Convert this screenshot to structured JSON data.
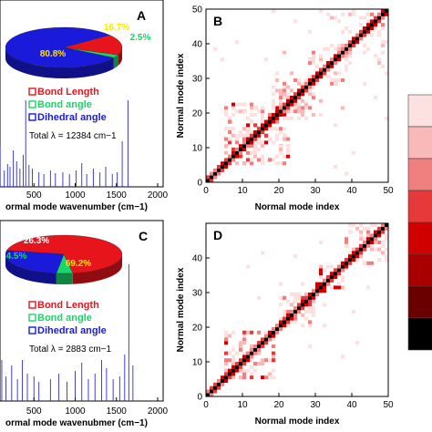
{
  "panels": {
    "A": {
      "letter": "A",
      "xlabel": "ormal mode wavenumber (cm−1)",
      "total_label": "Total λ = 12384 cm−1",
      "pie": {
        "slices": [
          {
            "name": "Bond Length",
            "percent": 16.7,
            "label": "16.7%",
            "color": "#e8141c"
          },
          {
            "name": "Bond angle",
            "percent": 2.5,
            "label": "2.5%",
            "color": "#19d66a"
          },
          {
            "name": "Dihedral angle",
            "percent": 80.8,
            "label": "80.8%",
            "color": "#1a1adb"
          }
        ]
      },
      "legend": [
        "Bond Length",
        "Bond angle",
        "Dihedral angle"
      ],
      "spectrum": {
        "x_ticks": [
          "500",
          "1000",
          "1500",
          "2000"
        ],
        "xlim": [
          0,
          2000
        ],
        "lines": [
          [
            50,
            30
          ],
          [
            90,
            45
          ],
          [
            140,
            18
          ],
          [
            180,
            25
          ],
          [
            210,
            22
          ],
          [
            250,
            40
          ],
          [
            290,
            28
          ],
          [
            330,
            20
          ],
          [
            370,
            35
          ],
          [
            400,
            95
          ],
          [
            440,
            24
          ],
          [
            480,
            20
          ],
          [
            560,
            16
          ],
          [
            620,
            14
          ],
          [
            700,
            18
          ],
          [
            760,
            15
          ],
          [
            850,
            16
          ],
          [
            930,
            14
          ],
          [
            1010,
            18
          ],
          [
            1080,
            26
          ],
          [
            1140,
            14
          ],
          [
            1220,
            20
          ],
          [
            1300,
            16
          ],
          [
            1370,
            22
          ],
          [
            1450,
            14
          ],
          [
            1510,
            16
          ],
          [
            1570,
            50
          ],
          [
            1640,
            95
          ]
        ]
      }
    },
    "B": {
      "letter": "B",
      "xlabel": "Normal mode index",
      "ylabel": "Normal mode index",
      "x_ticks": [
        "0",
        "10",
        "20",
        "30",
        "40",
        "50"
      ],
      "y_ticks": [
        "0",
        "10",
        "20",
        "30",
        "40",
        "50"
      ],
      "range": [
        0,
        50
      ]
    },
    "C": {
      "letter": "C",
      "xlabel": "ormal mode wavenubmer (cm−1)",
      "total_label": "Total λ = 2883 cm−1",
      "pie": {
        "slices": [
          {
            "name": "Bond Length",
            "percent": 69.2,
            "label": "69.2%",
            "color": "#e8141c"
          },
          {
            "name": "Bond angle",
            "percent": 4.5,
            "label": "4.5%",
            "color": "#19d66a"
          },
          {
            "name": "Dihedral angle",
            "percent": 26.3,
            "label": "26.3%",
            "color": "#1a1adb"
          }
        ]
      },
      "legend": [
        "Bond Length",
        "Bond angle",
        "Dihedral angle"
      ],
      "spectrum": {
        "x_ticks": [
          "500",
          "1000",
          "1500",
          "2000"
        ],
        "xlim": [
          0,
          2000
        ],
        "lines": [
          [
            60,
            22
          ],
          [
            110,
            30
          ],
          [
            160,
            18
          ],
          [
            230,
            26
          ],
          [
            300,
            16
          ],
          [
            360,
            30
          ],
          [
            420,
            20
          ],
          [
            500,
            18
          ],
          [
            560,
            14
          ],
          [
            700,
            16
          ],
          [
            800,
            20
          ],
          [
            900,
            14
          ],
          [
            1000,
            22
          ],
          [
            1080,
            28
          ],
          [
            1160,
            16
          ],
          [
            1240,
            20
          ],
          [
            1320,
            30
          ],
          [
            1380,
            24
          ],
          [
            1460,
            16
          ],
          [
            1540,
            18
          ],
          [
            1600,
            34
          ],
          [
            1650,
            100
          ],
          [
            1700,
            26
          ]
        ]
      }
    },
    "D": {
      "letter": "D",
      "xlabel": "Normal mode index",
      "ylabel": "Normal mode index",
      "x_ticks": [
        "0",
        "10",
        "20",
        "30",
        "40",
        "50"
      ],
      "y_ticks": [
        "0",
        "10",
        "20",
        "30",
        "40"
      ],
      "range": [
        0,
        50
      ]
    }
  },
  "colorbar": {
    "colors": [
      "#fde0e0",
      "#f9b9b9",
      "#f08080",
      "#e63a3a",
      "#d00000",
      "#a80000",
      "#6a0000",
      "#000000"
    ]
  },
  "chart_data": [
    {
      "type": "pie",
      "panel": "A",
      "slices": [
        {
          "name": "Bond Length",
          "value": 16.7
        },
        {
          "name": "Bond angle",
          "value": 2.5
        },
        {
          "name": "Dihedral angle",
          "value": 80.8
        }
      ],
      "annotation": "Total λ = 12384 cm−1"
    },
    {
      "type": "bar",
      "panel": "A",
      "xlabel": "ormal mode wavenumber (cm−1)",
      "xlim": [
        0,
        2000
      ]
    },
    {
      "type": "heatmap",
      "panel": "B",
      "xlabel": "Normal mode index",
      "ylabel": "Normal mode index",
      "xlim": [
        0,
        50
      ],
      "ylim": [
        0,
        50
      ]
    },
    {
      "type": "pie",
      "panel": "C",
      "slices": [
        {
          "name": "Bond Length",
          "value": 69.2
        },
        {
          "name": "Bond angle",
          "value": 4.5
        },
        {
          "name": "Dihedral angle",
          "value": 26.3
        }
      ],
      "annotation": "Total λ = 2883 cm−1"
    },
    {
      "type": "bar",
      "panel": "C",
      "xlabel": "ormal mode wavenubmer (cm−1)",
      "xlim": [
        0,
        2000
      ]
    },
    {
      "type": "heatmap",
      "panel": "D",
      "xlabel": "Normal mode index",
      "ylabel": "Normal mode index",
      "xlim": [
        0,
        50
      ],
      "ylim": [
        0,
        50
      ]
    }
  ]
}
